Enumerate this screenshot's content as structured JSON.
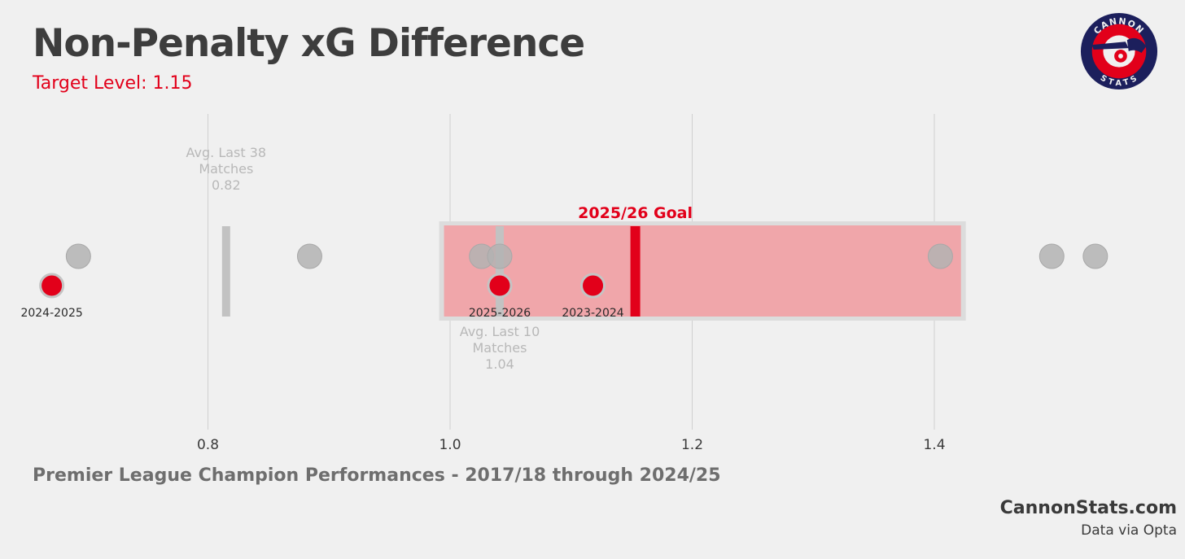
{
  "header": {
    "title": "Non-Penalty xG Difference",
    "subtitle": "Target Level: 1.15"
  },
  "footer": {
    "caption": "Premier League Champion Performances - 2017/18 through 2024/25",
    "site": "CannonStats.com",
    "source": "Data via Opta"
  },
  "logo": {
    "top_text": "CANNON",
    "bottom_text": "STATS",
    "icon": "cannon-icon",
    "colors": {
      "outer": "#1c1f5c",
      "ring": "#e2001a",
      "inner": "#f0f0f0"
    }
  },
  "colors": {
    "accent": "#e2001a",
    "grey_point": "#b3b3b3",
    "target_band": "#f0a6aa",
    "avg_line": "#c2c2c2"
  },
  "chart_data": {
    "type": "scatter",
    "title": "",
    "xlabel": "",
    "ylabel": "",
    "xlim": [
      0.66,
      1.55
    ],
    "xticks": [
      {
        "value": 0.8,
        "label": "0.8"
      },
      {
        "value": 1.0,
        "label": "1.0"
      },
      {
        "value": 1.2,
        "label": "1.2"
      },
      {
        "value": 1.4,
        "label": "1.4"
      }
    ],
    "grid": true,
    "champion_points": [
      {
        "x": 0.693
      },
      {
        "x": 0.884
      },
      {
        "x": 1.026
      },
      {
        "x": 1.041
      },
      {
        "x": 1.405
      },
      {
        "x": 1.497
      },
      {
        "x": 1.533
      }
    ],
    "arsenal_points": [
      {
        "x": 0.671,
        "label": "2024-2025"
      },
      {
        "x": 1.041,
        "label": "2025-2026"
      },
      {
        "x": 1.118,
        "label": "2023-2024"
      }
    ],
    "target_band": {
      "from": 0.995,
      "to": 1.422
    },
    "goal": {
      "x": 1.153,
      "label": "2025/26 Goal"
    },
    "averages": [
      {
        "x": 0.815,
        "label_lines": [
          "Avg. Last 38",
          "Matches",
          "0.82"
        ],
        "label_pos": "above"
      },
      {
        "x": 1.041,
        "label_lines": [
          "Avg. Last 10",
          "Matches",
          "1.04"
        ],
        "label_pos": "below"
      }
    ]
  }
}
